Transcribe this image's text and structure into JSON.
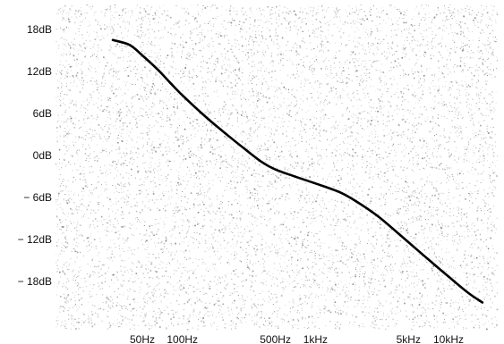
{
  "chart_data": {
    "type": "line",
    "title": "",
    "xlabel": "",
    "ylabel": "",
    "x_scale": "log",
    "xlim": [
      20,
      20000
    ],
    "ylim": [
      -21,
      20
    ],
    "grid": false,
    "background": "speckled-noise",
    "y_ticks": [
      {
        "value": 18,
        "label": "18dB"
      },
      {
        "value": 12,
        "label": "12dB"
      },
      {
        "value": 6,
        "label": "6dB"
      },
      {
        "value": 0,
        "label": "0dB"
      },
      {
        "value": -6,
        "label": "− 6dB"
      },
      {
        "value": -12,
        "label": "− 12dB"
      },
      {
        "value": -18,
        "label": "− 18dB"
      }
    ],
    "x_ticks": [
      {
        "value": 50,
        "label": "50Hz"
      },
      {
        "value": 100,
        "label": "100Hz"
      },
      {
        "value": 500,
        "label": "500Hz"
      },
      {
        "value": 1000,
        "label": "1kHz"
      },
      {
        "value": 5000,
        "label": "5kHz"
      },
      {
        "value": 10000,
        "label": "10kHz"
      }
    ],
    "series": [
      {
        "color": "#000000",
        "points": [
          {
            "x": 30,
            "y": 16.5
          },
          {
            "x": 40,
            "y": 15.8
          },
          {
            "x": 50,
            "y": 14.3
          },
          {
            "x": 65,
            "y": 12.3
          },
          {
            "x": 80,
            "y": 10.5
          },
          {
            "x": 100,
            "y": 8.6
          },
          {
            "x": 150,
            "y": 5.5
          },
          {
            "x": 200,
            "y": 3.5
          },
          {
            "x": 300,
            "y": 0.8
          },
          {
            "x": 400,
            "y": -1.0
          },
          {
            "x": 500,
            "y": -2.0
          },
          {
            "x": 700,
            "y": -3.0
          },
          {
            "x": 1000,
            "y": -4.0
          },
          {
            "x": 1500,
            "y": -5.2
          },
          {
            "x": 2000,
            "y": -6.5
          },
          {
            "x": 3000,
            "y": -8.8
          },
          {
            "x": 5000,
            "y": -12.4
          },
          {
            "x": 7000,
            "y": -14.8
          },
          {
            "x": 10000,
            "y": -17.3
          },
          {
            "x": 14000,
            "y": -19.6
          },
          {
            "x": 18000,
            "y": -21.0
          }
        ]
      }
    ]
  }
}
